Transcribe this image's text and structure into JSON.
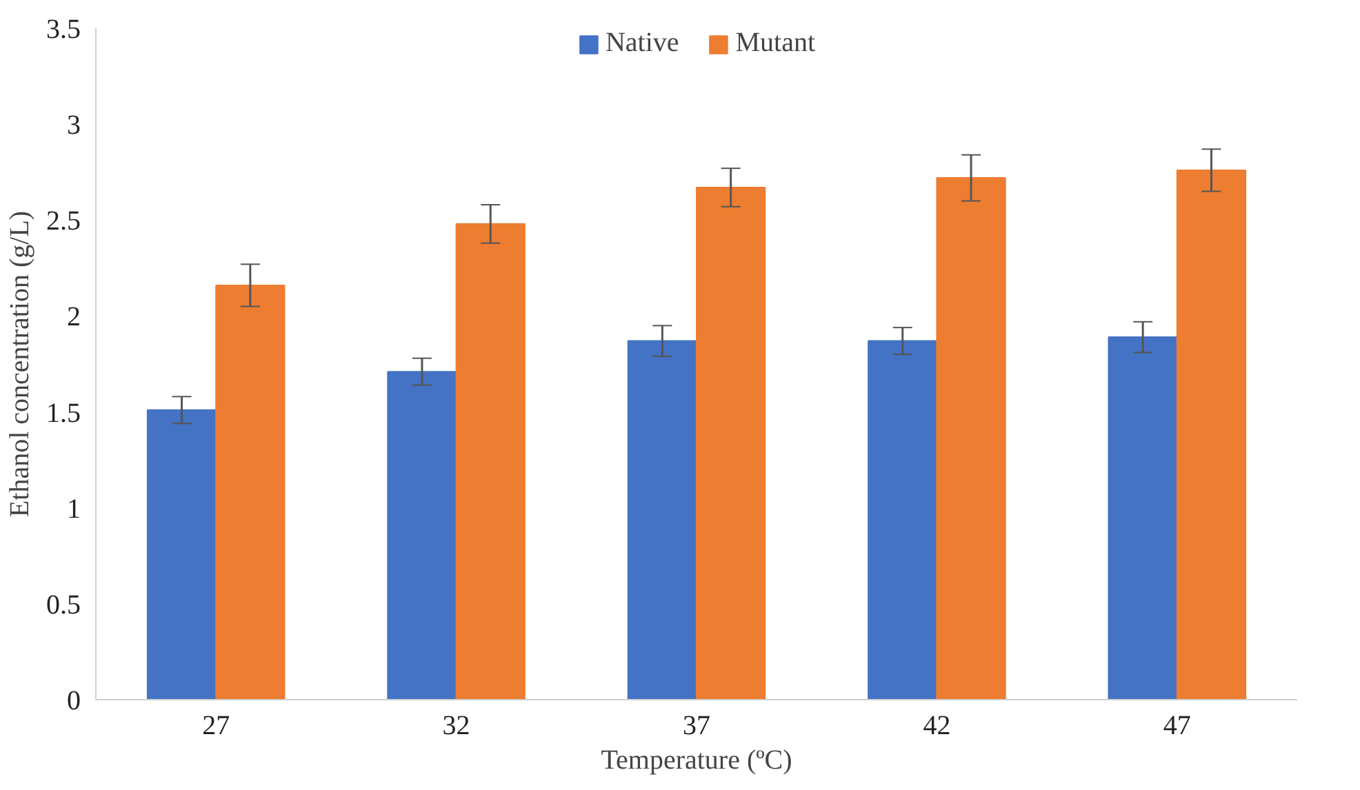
{
  "chart_data": {
    "type": "bar",
    "xlabel": "Temperature (ºC)",
    "ylabel": "Ethanol concentration (g/L)",
    "categories": [
      "27",
      "32",
      "37",
      "42",
      "47"
    ],
    "series": [
      {
        "name": "Native",
        "color": "#4472c4",
        "values": [
          1.51,
          1.71,
          1.87,
          1.87,
          1.89
        ],
        "errors": [
          0.07,
          0.07,
          0.08,
          0.07,
          0.08
        ]
      },
      {
        "name": "Mutant",
        "color": "#ed7d31",
        "values": [
          2.16,
          2.48,
          2.67,
          2.72,
          2.76
        ],
        "errors": [
          0.11,
          0.1,
          0.1,
          0.12,
          0.11
        ]
      }
    ],
    "ylim": [
      0,
      3.5
    ],
    "yticks": [
      0,
      0.5,
      1,
      1.5,
      2,
      2.5,
      3,
      3.5
    ],
    "grid": false,
    "legend": "top"
  }
}
